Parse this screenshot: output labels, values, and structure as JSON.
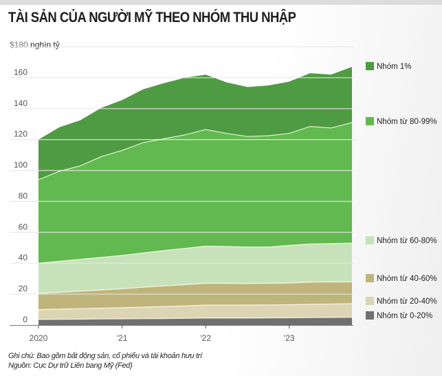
{
  "header": {
    "title": "TÀI SẢN CỦA NGƯỜI MỸ THEO NHÓM THU NHẬP",
    "unit_value": "$180",
    "unit_label": "nghìn tỷ"
  },
  "notes": {
    "note": "Ghi chú: Bao gồm bất động sản, cổ phiếu và tài khoản hưu trí",
    "source": "Nguồn: Cục Dự trữ Liên bang Mỹ (Fed)"
  },
  "chart_data": {
    "type": "area",
    "stacked": true,
    "title": "TÀI SẢN CỦA NGƯỜI MỸ THEO NHÓM THU NHẬP",
    "ylabel": "$180 nghìn tỷ",
    "xlabel": "",
    "ylim": [
      0,
      180
    ],
    "yticks": [
      0,
      20,
      40,
      60,
      80,
      100,
      120,
      140,
      160
    ],
    "xticks": [
      {
        "label": "2020",
        "index": 0
      },
      {
        "label": "'21",
        "index": 4
      },
      {
        "label": "'22",
        "index": 8
      },
      {
        "label": "'23",
        "index": 12
      }
    ],
    "x": [
      "2020 Q1",
      "2020 Q2",
      "2020 Q3",
      "2020 Q4",
      "2021 Q1",
      "2021 Q2",
      "2021 Q3",
      "2021 Q4",
      "2022 Q1",
      "2022 Q2",
      "2022 Q3",
      "2022 Q4",
      "2023 Q1",
      "2023 Q2",
      "2023 Q3",
      "2023 Q4"
    ],
    "grid": true,
    "legend_position": "right",
    "series_note": "values are cumulative top boundaries of each stacked band (trillion USD)",
    "series": [
      {
        "name": "Nhóm từ 0-20%",
        "color": "#707070",
        "cumulative": [
          3.6,
          3.7,
          3.8,
          3.9,
          4.0,
          4.1,
          4.2,
          4.3,
          4.5,
          4.5,
          4.5,
          4.6,
          4.7,
          4.8,
          4.9,
          5.0
        ]
      },
      {
        "name": "Nhóm từ 20-40%",
        "color": "#dcd5b4",
        "cumulative": [
          10.0,
          10.3,
          10.6,
          10.9,
          11.2,
          11.6,
          12.0,
          12.4,
          12.9,
          12.9,
          12.9,
          13.0,
          13.1,
          13.4,
          13.6,
          13.8
        ]
      },
      {
        "name": "Nhóm từ 40-60%",
        "color": "#bfb47c",
        "cumulative": [
          20.5,
          21.2,
          21.9,
          22.7,
          23.5,
          24.4,
          25.3,
          26.1,
          27.0,
          27.0,
          26.9,
          27.0,
          27.2,
          27.8,
          27.9,
          28.0
        ]
      },
      {
        "name": "Nhóm từ 60-80%",
        "color": "#c7e2bb",
        "cumulative": [
          40.0,
          41.3,
          42.5,
          43.8,
          45.0,
          46.6,
          48.2,
          49.6,
          51.0,
          50.8,
          50.5,
          50.5,
          51.5,
          52.5,
          52.7,
          53.0
        ]
      },
      {
        "name": "Nhóm từ 80-99%",
        "color": "#62b94f",
        "cumulative": [
          94.0,
          99.5,
          103.0,
          109.0,
          113.0,
          118.0,
          120.5,
          123.0,
          126.5,
          124.0,
          122.0,
          122.5,
          124.0,
          128.5,
          127.5,
          131.0
        ]
      },
      {
        "name": "Nhóm 1%",
        "color": "#4f9b43",
        "cumulative": [
          120.0,
          128.0,
          132.5,
          140.5,
          145.5,
          152.5,
          156.5,
          160.0,
          162.0,
          157.0,
          154.0,
          155.0,
          157.5,
          163.0,
          162.0,
          167.0
        ]
      }
    ]
  }
}
